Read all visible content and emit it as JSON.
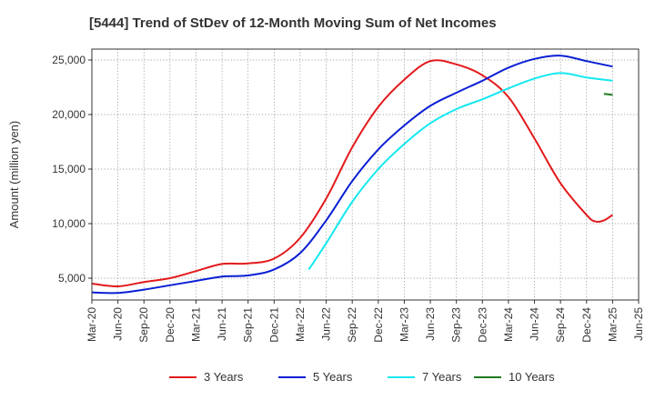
{
  "chart_data": {
    "type": "line",
    "title": "[5444]  Trend of StDev of 12-Month Moving Sum of Net Incomes",
    "xlabel": "",
    "ylabel": "Amount (million yen)",
    "ylim": [
      3000,
      26000
    ],
    "yticks": [
      5000,
      10000,
      15000,
      20000,
      25000
    ],
    "ytick_labels": [
      "5,000",
      "10,000",
      "15,000",
      "20,000",
      "25,000"
    ],
    "x_tick_labels": [
      "Mar-20",
      "Jun-20",
      "Sep-20",
      "Dec-20",
      "Mar-21",
      "Jun-21",
      "Sep-21",
      "Dec-21",
      "Mar-22",
      "Jun-22",
      "Sep-22",
      "Dec-22",
      "Mar-23",
      "Jun-23",
      "Sep-23",
      "Dec-23",
      "Mar-24",
      "Jun-24",
      "Sep-24",
      "Dec-24",
      "Mar-25",
      "Jun-25"
    ],
    "grid": true,
    "legend_position": "bottom",
    "series": [
      {
        "name": "3 Years",
        "color": "#e31a1c",
        "x": [
          "Mar-20",
          "Jun-20",
          "Sep-20",
          "Dec-20",
          "Mar-21",
          "Jun-21",
          "Sep-21",
          "Dec-21",
          "Mar-22",
          "Jun-22",
          "Sep-22",
          "Dec-22",
          "Mar-23",
          "Jun-23",
          "Sep-23",
          "Dec-23",
          "Mar-24",
          "Jun-24",
          "Sep-24",
          "Dec-24",
          "Jan-25",
          "Feb-25",
          "Mar-25"
        ],
        "values": [
          4500,
          4250,
          4650,
          5000,
          5650,
          6300,
          6350,
          6800,
          8700,
          12300,
          17000,
          20700,
          23200,
          24900,
          24600,
          23600,
          21600,
          17800,
          13700,
          10800,
          10200,
          10300,
          10800
        ]
      },
      {
        "name": "5 Years",
        "color": "#0a1fd4",
        "x": [
          "Mar-20",
          "Jun-20",
          "Sep-20",
          "Dec-20",
          "Mar-21",
          "Jun-21",
          "Sep-21",
          "Dec-21",
          "Mar-22",
          "Jun-22",
          "Sep-22",
          "Dec-22",
          "Mar-23",
          "Jun-23",
          "Sep-23",
          "Dec-23",
          "Mar-24",
          "Jun-24",
          "Sep-24",
          "Dec-24",
          "Mar-25"
        ],
        "values": [
          3700,
          3650,
          3950,
          4350,
          4750,
          5150,
          5250,
          5800,
          7300,
          10300,
          13900,
          16800,
          19000,
          20800,
          22000,
          23100,
          24300,
          25100,
          25400,
          24900,
          24400
        ]
      },
      {
        "name": "7 Years",
        "color": "#14e8f0",
        "x": [
          "Apr-22",
          "Jun-22",
          "Sep-22",
          "Dec-22",
          "Mar-23",
          "Jun-23",
          "Sep-23",
          "Dec-23",
          "Mar-24",
          "Jun-24",
          "Sep-24",
          "Dec-24",
          "Mar-25"
        ],
        "values": [
          5800,
          8200,
          12000,
          15000,
          17300,
          19200,
          20500,
          21400,
          22400,
          23300,
          23800,
          23400,
          23100
        ]
      },
      {
        "name": "10 Years",
        "color": "#1e7a1e",
        "x": [
          "Feb-25",
          "Mar-25"
        ],
        "values": [
          21900,
          21800
        ]
      }
    ]
  }
}
